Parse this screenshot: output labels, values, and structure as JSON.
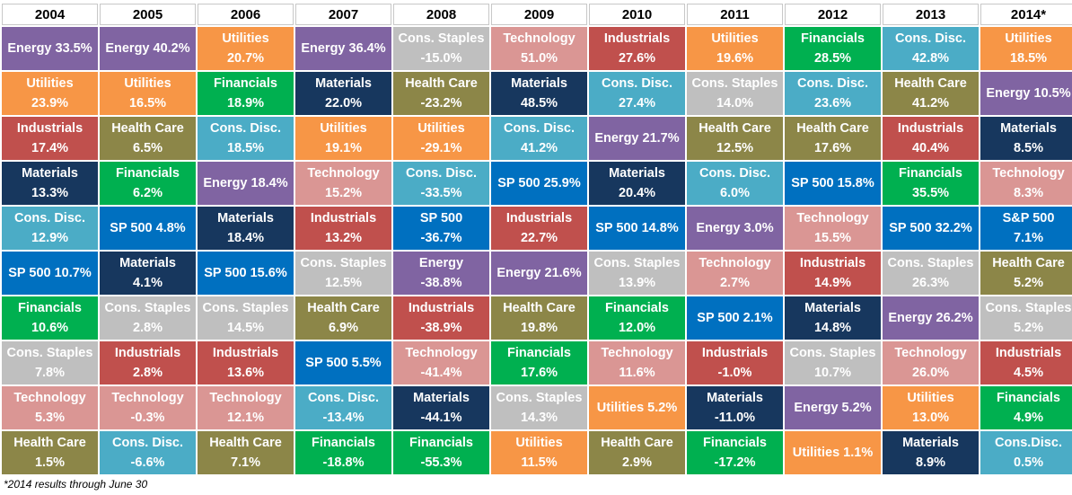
{
  "chart_data": {
    "type": "table",
    "title": "",
    "years": [
      "2004",
      "2005",
      "2006",
      "2007",
      "2008",
      "2009",
      "2010",
      "2011",
      "2012",
      "2013",
      "2014*"
    ],
    "colors": {
      "Energy": "#8064a2",
      "Utilities": "#f79646",
      "Industrials": "#c0504d",
      "Materials": "#17375e",
      "Cons. Disc.": "#4bacc6",
      "SP 500": "#0070c0",
      "Financials": "#00b050",
      "Cons. Staples": "#bfbfbf",
      "Technology": "#da9694",
      "Health Care": "#8c8648"
    },
    "columns": [
      {
        "year": "2004",
        "cells": [
          {
            "sector": "Energy",
            "label": "Energy",
            "value": "33.5%",
            "layout": "inline"
          },
          {
            "sector": "Utilities",
            "label": "Utilities",
            "value": "23.9%",
            "layout": "stack"
          },
          {
            "sector": "Industrials",
            "label": "Industrials",
            "value": "17.4%",
            "layout": "stack"
          },
          {
            "sector": "Materials",
            "label": "Materials",
            "value": "13.3%",
            "layout": "stack"
          },
          {
            "sector": "Cons. Disc.",
            "label": "Cons. Disc.",
            "value": "12.9%",
            "layout": "stack"
          },
          {
            "sector": "SP 500",
            "label": "SP 500",
            "value": "10.7%",
            "layout": "inline"
          },
          {
            "sector": "Financials",
            "label": "Financials",
            "value": "10.6%",
            "layout": "stack"
          },
          {
            "sector": "Cons. Staples",
            "label": "Cons. Staples",
            "value": "7.8%",
            "layout": "stack"
          },
          {
            "sector": "Technology",
            "label": "Technology",
            "value": "5.3%",
            "layout": "stack"
          },
          {
            "sector": "Health Care",
            "label": "Health Care",
            "value": "1.5%",
            "layout": "stack"
          }
        ]
      },
      {
        "year": "2005",
        "cells": [
          {
            "sector": "Energy",
            "label": "Energy",
            "value": "40.2%",
            "layout": "inline"
          },
          {
            "sector": "Utilities",
            "label": "Utilities",
            "value": "16.5%",
            "layout": "stack"
          },
          {
            "sector": "Health Care",
            "label": "Health Care",
            "value": "6.5%",
            "layout": "stack"
          },
          {
            "sector": "Financials",
            "label": "Financials",
            "value": "6.2%",
            "layout": "stack"
          },
          {
            "sector": "SP 500",
            "label": "SP 500",
            "value": "4.8%",
            "layout": "inline"
          },
          {
            "sector": "Materials",
            "label": "Materials",
            "value": "4.1%",
            "layout": "stack"
          },
          {
            "sector": "Cons. Staples",
            "label": "Cons. Staples",
            "value": "2.8%",
            "layout": "stack"
          },
          {
            "sector": "Industrials",
            "label": "Industrials",
            "value": "2.8%",
            "layout": "stack"
          },
          {
            "sector": "Technology",
            "label": "Technology",
            "value": "-0.3%",
            "layout": "stack"
          },
          {
            "sector": "Cons. Disc.",
            "label": "Cons. Disc.",
            "value": "-6.6%",
            "layout": "stack"
          }
        ]
      },
      {
        "year": "2006",
        "cells": [
          {
            "sector": "Utilities",
            "label": "Utilities",
            "value": "20.7%",
            "layout": "stack"
          },
          {
            "sector": "Financials",
            "label": "Financials",
            "value": "18.9%",
            "layout": "stack"
          },
          {
            "sector": "Cons. Disc.",
            "label": "Cons. Disc.",
            "value": "18.5%",
            "layout": "stack"
          },
          {
            "sector": "Energy",
            "label": "Energy",
            "value": "18.4%",
            "layout": "inline"
          },
          {
            "sector": "Materials",
            "label": "Materials",
            "value": "18.4%",
            "layout": "stack"
          },
          {
            "sector": "SP 500",
            "label": "SP 500",
            "value": "15.6%",
            "layout": "inline"
          },
          {
            "sector": "Cons. Staples",
            "label": "Cons. Staples",
            "value": "14.5%",
            "layout": "stack"
          },
          {
            "sector": "Industrials",
            "label": "Industrials",
            "value": "13.6%",
            "layout": "stack"
          },
          {
            "sector": "Technology",
            "label": "Technology",
            "value": "12.1%",
            "layout": "stack"
          },
          {
            "sector": "Health Care",
            "label": "Health Care",
            "value": "7.1%",
            "layout": "stack"
          }
        ]
      },
      {
        "year": "2007",
        "cells": [
          {
            "sector": "Energy",
            "label": "Energy",
            "value": "36.4%",
            "layout": "inline"
          },
          {
            "sector": "Materials",
            "label": "Materials",
            "value": "22.0%",
            "layout": "stack"
          },
          {
            "sector": "Utilities",
            "label": "Utilities",
            "value": "19.1%",
            "layout": "stack"
          },
          {
            "sector": "Technology",
            "label": "Technology",
            "value": "15.2%",
            "layout": "stack"
          },
          {
            "sector": "Industrials",
            "label": "Industrials",
            "value": "13.2%",
            "layout": "stack"
          },
          {
            "sector": "Cons. Staples",
            "label": "Cons. Staples",
            "value": "12.5%",
            "layout": "stack"
          },
          {
            "sector": "Health Care",
            "label": "Health Care",
            "value": "6.9%",
            "layout": "stack"
          },
          {
            "sector": "SP 500",
            "label": "SP 500",
            "value": "5.5%",
            "layout": "inline"
          },
          {
            "sector": "Cons. Disc.",
            "label": "Cons. Disc.",
            "value": "-13.4%",
            "layout": "stack"
          },
          {
            "sector": "Financials",
            "label": "Financials",
            "value": "-18.8%",
            "layout": "stack"
          }
        ]
      },
      {
        "year": "2008",
        "cells": [
          {
            "sector": "Cons. Staples",
            "label": "Cons. Staples",
            "value": "-15.0%",
            "layout": "stack"
          },
          {
            "sector": "Health Care",
            "label": "Health Care",
            "value": "-23.2%",
            "layout": "stack"
          },
          {
            "sector": "Utilities",
            "label": "Utilities",
            "value": "-29.1%",
            "layout": "stack"
          },
          {
            "sector": "Cons. Disc.",
            "label": "Cons. Disc.",
            "value": "-33.5%",
            "layout": "stack"
          },
          {
            "sector": "SP 500",
            "label": "SP 500",
            "value": "-36.7%",
            "layout": "stack"
          },
          {
            "sector": "Energy",
            "label": "Energy",
            "value": "-38.8%",
            "layout": "stack"
          },
          {
            "sector": "Industrials",
            "label": "Industrials",
            "value": "-38.9%",
            "layout": "stack"
          },
          {
            "sector": "Technology",
            "label": "Technology",
            "value": "-41.4%",
            "layout": "stack"
          },
          {
            "sector": "Materials",
            "label": "Materials",
            "value": "-44.1%",
            "layout": "stack"
          },
          {
            "sector": "Financials",
            "label": "Financials",
            "value": "-55.3%",
            "layout": "stack"
          }
        ]
      },
      {
        "year": "2009",
        "cells": [
          {
            "sector": "Technology",
            "label": "Technology",
            "value": "51.0%",
            "layout": "stack"
          },
          {
            "sector": "Materials",
            "label": "Materials",
            "value": "48.5%",
            "layout": "stack"
          },
          {
            "sector": "Cons. Disc.",
            "label": "Cons. Disc.",
            "value": "41.2%",
            "layout": "stack"
          },
          {
            "sector": "SP 500",
            "label": "SP 500",
            "value": "25.9%",
            "layout": "inline"
          },
          {
            "sector": "Industrials",
            "label": "Industrials",
            "value": "22.7%",
            "layout": "stack"
          },
          {
            "sector": "Energy",
            "label": "Energy",
            "value": "21.6%",
            "layout": "inline"
          },
          {
            "sector": "Health Care",
            "label": "Health Care",
            "value": "19.8%",
            "layout": "stack"
          },
          {
            "sector": "Financials",
            "label": "Financials",
            "value": "17.6%",
            "layout": "stack"
          },
          {
            "sector": "Cons. Staples",
            "label": "Cons. Staples",
            "value": "14.3%",
            "layout": "stack"
          },
          {
            "sector": "Utilities",
            "label": "Utilities",
            "value": "11.5%",
            "layout": "stack"
          }
        ]
      },
      {
        "year": "2010",
        "cells": [
          {
            "sector": "Industrials",
            "label": "Industrials",
            "value": "27.6%",
            "layout": "stack"
          },
          {
            "sector": "Cons. Disc.",
            "label": "Cons. Disc.",
            "value": "27.4%",
            "layout": "stack"
          },
          {
            "sector": "Energy",
            "label": "Energy",
            "value": "21.7%",
            "layout": "inline"
          },
          {
            "sector": "Materials",
            "label": "Materials",
            "value": "20.4%",
            "layout": "stack"
          },
          {
            "sector": "SP 500",
            "label": "SP 500",
            "value": "14.8%",
            "layout": "inline"
          },
          {
            "sector": "Cons. Staples",
            "label": "Cons. Staples",
            "value": "13.9%",
            "layout": "stack"
          },
          {
            "sector": "Financials",
            "label": "Financials",
            "value": "12.0%",
            "layout": "stack"
          },
          {
            "sector": "Technology",
            "label": "Technology",
            "value": "11.6%",
            "layout": "stack"
          },
          {
            "sector": "Utilities",
            "label": "Utilities",
            "value": "5.2%",
            "layout": "inline"
          },
          {
            "sector": "Health Care",
            "label": "Health Care",
            "value": "2.9%",
            "layout": "stack"
          }
        ]
      },
      {
        "year": "2011",
        "cells": [
          {
            "sector": "Utilities",
            "label": "Utilities",
            "value": "19.6%",
            "layout": "stack"
          },
          {
            "sector": "Cons. Staples",
            "label": "Cons. Staples",
            "value": "14.0%",
            "layout": "stack"
          },
          {
            "sector": "Health Care",
            "label": "Health Care",
            "value": "12.5%",
            "layout": "stack"
          },
          {
            "sector": "Cons. Disc.",
            "label": "Cons. Disc.",
            "value": "6.0%",
            "layout": "stack"
          },
          {
            "sector": "Energy",
            "label": "Energy",
            "value": "3.0%",
            "layout": "inline"
          },
          {
            "sector": "Technology",
            "label": "Technology",
            "value": "2.7%",
            "layout": "stack"
          },
          {
            "sector": "SP 500",
            "label": "SP 500",
            "value": "2.1%",
            "layout": "inline"
          },
          {
            "sector": "Industrials",
            "label": "Industrials",
            "value": "-1.0%",
            "layout": "stack"
          },
          {
            "sector": "Materials",
            "label": "Materials",
            "value": "-11.0%",
            "layout": "stack"
          },
          {
            "sector": "Financials",
            "label": "Financials",
            "value": "-17.2%",
            "layout": "stack"
          }
        ]
      },
      {
        "year": "2012",
        "cells": [
          {
            "sector": "Financials",
            "label": "Financials",
            "value": "28.5%",
            "layout": "stack"
          },
          {
            "sector": "Cons. Disc.",
            "label": "Cons. Disc.",
            "value": "23.6%",
            "layout": "stack"
          },
          {
            "sector": "Health Care",
            "label": "Health Care",
            "value": "17.6%",
            "layout": "stack"
          },
          {
            "sector": "SP 500",
            "label": "SP 500",
            "value": "15.8%",
            "layout": "inline"
          },
          {
            "sector": "Technology",
            "label": "Technology",
            "value": "15.5%",
            "layout": "stack"
          },
          {
            "sector": "Industrials",
            "label": "Industrials",
            "value": "14.9%",
            "layout": "stack"
          },
          {
            "sector": "Materials",
            "label": "Materials",
            "value": "14.8%",
            "layout": "stack"
          },
          {
            "sector": "Cons. Staples",
            "label": "Cons. Staples",
            "value": "10.7%",
            "layout": "stack"
          },
          {
            "sector": "Energy",
            "label": "Energy",
            "value": "5.2%",
            "layout": "inline"
          },
          {
            "sector": "Utilities",
            "label": "Utilities",
            "value": "1.1%",
            "layout": "inline"
          }
        ]
      },
      {
        "year": "2013",
        "cells": [
          {
            "sector": "Cons. Disc.",
            "label": "Cons. Disc.",
            "value": "42.8%",
            "layout": "stack"
          },
          {
            "sector": "Health Care",
            "label": "Health Care",
            "value": "41.2%",
            "layout": "stack"
          },
          {
            "sector": "Industrials",
            "label": "Industrials",
            "value": "40.4%",
            "layout": "stack"
          },
          {
            "sector": "Financials",
            "label": "Financials",
            "value": "35.5%",
            "layout": "stack"
          },
          {
            "sector": "SP 500",
            "label": "SP 500",
            "value": "32.2%",
            "layout": "inline"
          },
          {
            "sector": "Cons. Staples",
            "label": "Cons. Staples",
            "value": "26.3%",
            "layout": "stack"
          },
          {
            "sector": "Energy",
            "label": "Energy",
            "value": "26.2%",
            "layout": "inline"
          },
          {
            "sector": "Technology",
            "label": "Technology",
            "value": "26.0%",
            "layout": "stack"
          },
          {
            "sector": "Utilities",
            "label": "Utilities",
            "value": "13.0%",
            "layout": "stack"
          },
          {
            "sector": "Materials",
            "label": "Materials",
            "value": "8.9%",
            "layout": "stack"
          }
        ]
      },
      {
        "year": "2014*",
        "cells": [
          {
            "sector": "Utilities",
            "label": "Utilities",
            "value": "18.5%",
            "layout": "stack"
          },
          {
            "sector": "Energy",
            "label": "Energy",
            "value": "10.5%",
            "layout": "inline"
          },
          {
            "sector": "Materials",
            "label": "Materials",
            "value": "8.5%",
            "layout": "stack"
          },
          {
            "sector": "Technology",
            "label": "Technology",
            "value": "8.3%",
            "layout": "stack"
          },
          {
            "sector": "SP 500",
            "label": "S&P 500",
            "value": "7.1%",
            "layout": "stack"
          },
          {
            "sector": "Health Care",
            "label": "Health Care",
            "value": "5.2%",
            "layout": "stack"
          },
          {
            "sector": "Cons. Staples",
            "label": "Cons. Staples",
            "value": "5.2%",
            "layout": "stack"
          },
          {
            "sector": "Industrials",
            "label": "Industrials",
            "value": "4.5%",
            "layout": "stack"
          },
          {
            "sector": "Financials",
            "label": "Financials",
            "value": "4.9%",
            "layout": "stack"
          },
          {
            "sector": "Cons. Disc.",
            "label": "Cons.Disc.",
            "value": "0.5%",
            "layout": "stack"
          }
        ]
      }
    ]
  },
  "footnote": "*2014 results through June 30"
}
